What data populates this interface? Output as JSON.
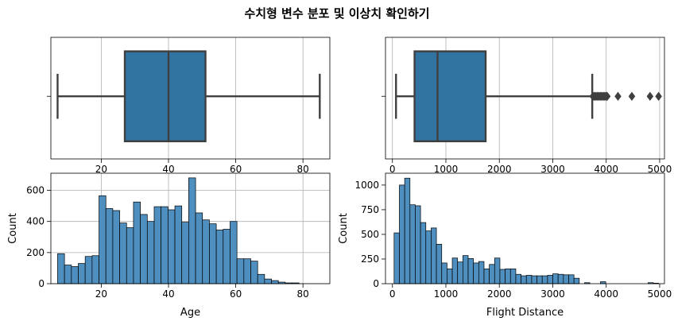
{
  "figure": {
    "title": "수치형 변수 분포 및 이상치 확인하기"
  },
  "colors": {
    "box_fill": "#3274a1",
    "box_line": "#3f3f3f",
    "hist_fill": "#4e8fbf",
    "hist_edge": "#000000",
    "grid": "#b0b0b0"
  },
  "chart_data": [
    {
      "type": "box",
      "variable": "Age",
      "xlim": [
        5,
        88
      ],
      "xticks": [
        20,
        40,
        60,
        80
      ],
      "whisker_low": 7,
      "q1": 27,
      "median": 40,
      "q3": 51,
      "whisker_high": 85,
      "outliers": [],
      "grid": true
    },
    {
      "type": "box",
      "variable": "Flight Distance",
      "xlim": [
        -130,
        5090
      ],
      "xticks": [
        0,
        1000,
        2000,
        3000,
        4000,
        5000
      ],
      "whisker_low": 67,
      "q1": 414,
      "median": 844,
      "q3": 1744,
      "whisker_high": 3739,
      "outliers": [
        3750,
        3770,
        3790,
        3810,
        3830,
        3850,
        3870,
        3890,
        3910,
        3930,
        3950,
        3970,
        3990,
        4010,
        4020,
        4220,
        4480,
        4820,
        4980
      ],
      "grid": true
    },
    {
      "type": "histogram",
      "xlabel": "Age",
      "ylabel": "Count",
      "xlim": [
        5,
        88
      ],
      "ylim": [
        0,
        710
      ],
      "xticks": [
        20,
        40,
        60,
        80
      ],
      "yticks": [
        0,
        200,
        400,
        600
      ],
      "bin_start": 7,
      "bin_width": 2.0526,
      "counts": [
        193,
        120,
        110,
        130,
        175,
        180,
        565,
        483,
        470,
        390,
        360,
        525,
        445,
        400,
        495,
        495,
        475,
        500,
        395,
        680,
        455,
        410,
        385,
        345,
        350,
        400,
        160,
        160,
        145,
        60,
        30,
        20,
        10,
        5,
        5
      ],
      "grid": true
    },
    {
      "type": "histogram",
      "xlabel": "Flight Distance",
      "ylabel": "Count",
      "xlim": [
        -130,
        5090
      ],
      "ylim": [
        0,
        1120
      ],
      "xticks": [
        0,
        1000,
        2000,
        3000,
        4000,
        5000
      ],
      "yticks": [
        0,
        250,
        500,
        750,
        1000
      ],
      "bin_start": 31,
      "bin_width": 99,
      "counts": [
        515,
        1000,
        1070,
        800,
        790,
        620,
        535,
        565,
        400,
        210,
        150,
        260,
        220,
        285,
        255,
        210,
        225,
        150,
        195,
        260,
        145,
        150,
        150,
        95,
        80,
        85,
        80,
        80,
        80,
        85,
        100,
        95,
        90,
        90,
        55,
        0,
        10,
        0,
        0,
        20,
        0,
        0,
        0,
        0,
        0,
        0,
        0,
        0,
        10,
        5
      ]
    }
  ]
}
